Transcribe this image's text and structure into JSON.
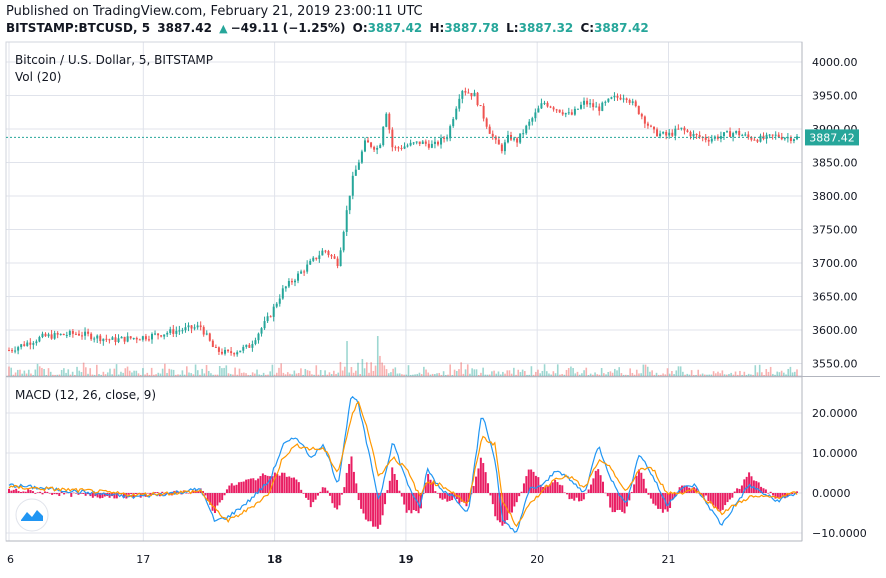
{
  "header": {
    "published": "Published on TradingView.com, February 21, 2019 23:00:11 UTC",
    "symbol": "BITSTAMP:BTCUSD, 5",
    "last": "3887.42",
    "change": "−49.11 (−1.25%)",
    "o_label": "O:",
    "o_value": "3887.42",
    "h_label": "H:",
    "h_value": "3887.78",
    "l_label": "L:",
    "l_value": "3887.32",
    "c_label": "C:",
    "c_value": "3887.42"
  },
  "legend": {
    "main": "Bitcoin / U.S. Dollar, 5, BITSTAMP",
    "vol": "Vol (20)",
    "macd": "MACD (12, 26, close, 9)"
  },
  "price_badge": "3887.42",
  "colors": {
    "up": "#26a69a",
    "down": "#ef5350",
    "macd": "#2196f3",
    "signal": "#ff9800",
    "hist": "#e91e63",
    "grid": "#e0e3eb"
  },
  "chart_data": [
    {
      "type": "line",
      "title": "Bitcoin / U.S. Dollar, 5, BITSTAMP",
      "x_ticks": [
        "6",
        "17",
        "18",
        "19",
        "20",
        "21"
      ],
      "y_ticks": [
        "4000.00",
        "3950.00",
        "3900.00",
        "3850.00",
        "3800.00",
        "3750.00",
        "3700.00",
        "3650.00",
        "3600.00",
        "3550.00"
      ],
      "ylim": [
        3530,
        4005
      ],
      "last_price": 3887.42,
      "x": [
        0,
        0.25,
        0.5,
        0.75,
        1,
        1.25,
        1.4,
        1.5,
        1.6,
        1.75,
        1.9,
        2,
        2.1,
        2.2,
        2.3,
        2.4,
        2.5,
        2.6,
        2.7,
        2.75,
        2.8,
        2.9,
        3,
        3.1,
        3.2,
        3.3,
        3.4,
        3.5,
        3.55,
        3.6,
        3.65,
        3.7,
        3.8,
        3.9,
        4,
        4.1,
        4.2,
        4.3,
        4.4,
        4.5,
        4.6,
        4.7,
        4.8,
        4.9,
        5,
        5.1,
        5.2,
        5.3,
        5.4,
        5.5,
        5.6,
        5.7,
        5.75
      ],
      "values": [
        3570,
        3590,
        3595,
        3585,
        3590,
        3600,
        3605,
        3570,
        3565,
        3575,
        3620,
        3660,
        3680,
        3700,
        3720,
        3700,
        3820,
        3880,
        3870,
        3930,
        3870,
        3875,
        3880,
        3875,
        3890,
        3960,
        3950,
        3900,
        3880,
        3870,
        3890,
        3880,
        3910,
        3940,
        3930,
        3920,
        3940,
        3930,
        3945,
        3950,
        3925,
        3895,
        3890,
        3900,
        3890,
        3885,
        3890,
        3895,
        3887,
        3885,
        3890,
        3887,
        3887.42
      ]
    },
    {
      "type": "bar",
      "title": "Vol (20)",
      "note": "volume bars, no values printed"
    },
    {
      "type": "line",
      "title": "MACD (12, 26, close, 9)",
      "y_ticks": [
        "20.0000",
        "10.0000",
        "0.0000",
        "−10.0000"
      ],
      "ylim": [
        -11,
        27
      ],
      "x": [
        0,
        0.3,
        0.6,
        0.9,
        1.2,
        1.4,
        1.5,
        1.6,
        1.75,
        1.9,
        2,
        2.1,
        2.2,
        2.3,
        2.4,
        2.5,
        2.55,
        2.6,
        2.7,
        2.8,
        2.9,
        3,
        3.05,
        3.15,
        3.25,
        3.35,
        3.45,
        3.55,
        3.6,
        3.7,
        3.8,
        3.9,
        4,
        4.1,
        4.2,
        4.3,
        4.4,
        4.5,
        4.6,
        4.7,
        4.8,
        4.9,
        5,
        5.2,
        5.4,
        5.6,
        5.75
      ],
      "series": [
        {
          "values": [
            2,
            1,
            0,
            -1,
            0,
            1,
            -7,
            -6,
            -2,
            3,
            12,
            14,
            9,
            12,
            2,
            25,
            22,
            14,
            -2,
            13,
            3,
            -4,
            6,
            1,
            -1,
            -5,
            20,
            8,
            -7,
            -10,
            1,
            2,
            6,
            3,
            0,
            12,
            3,
            -3,
            10,
            4,
            -3,
            1,
            2,
            -8,
            2,
            -2,
            0
          ]
        },
        {
          "values": [
            1.5,
            1,
            0.5,
            -0.5,
            0,
            0.5,
            -4,
            -7,
            -4,
            0,
            9,
            12,
            11,
            11,
            5,
            19,
            23,
            18,
            4,
            9,
            6,
            -1,
            3,
            2,
            0,
            -3,
            14,
            12,
            -2,
            -8,
            -3,
            1,
            4,
            4,
            1,
            8,
            6,
            0,
            6,
            6,
            0,
            0,
            1,
            -5,
            -1,
            -1,
            0
          ]
        }
      ]
    }
  ]
}
